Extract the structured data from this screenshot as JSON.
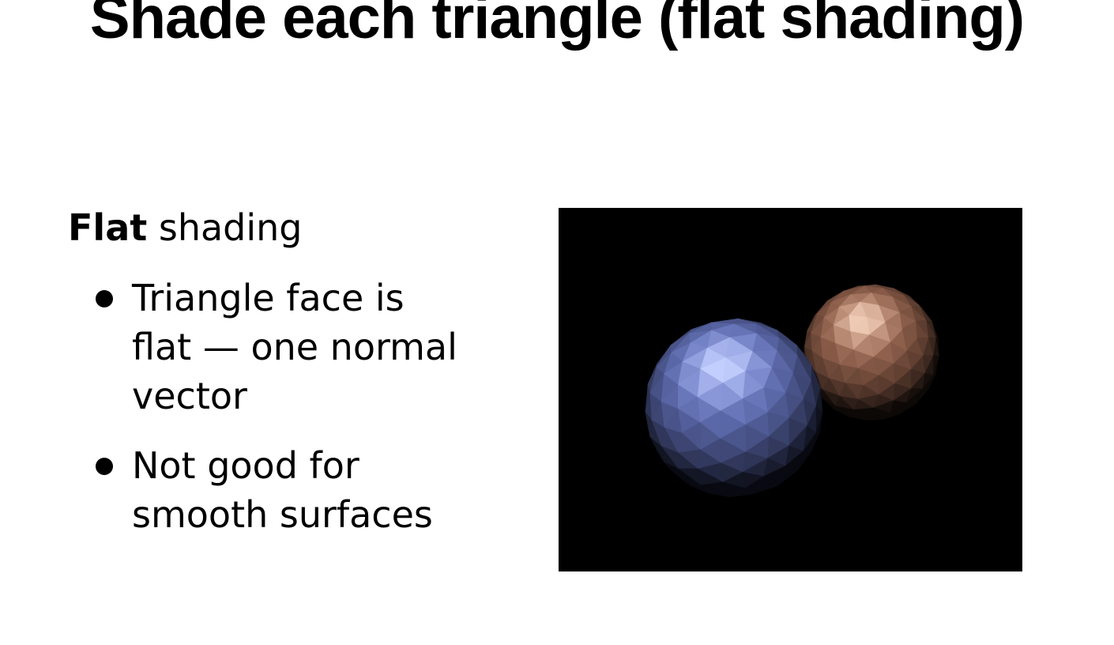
{
  "slide": {
    "title": "Shade each triangle (flat shading)",
    "heading_bold": "Flat",
    "heading_rest": " shading",
    "bullets": [
      {
        "lines": [
          "Triangle face is",
          "flat — one normal",
          "vector"
        ]
      },
      {
        "lines": [
          "Not good for",
          "smooth surfaces"
        ]
      }
    ]
  },
  "figure": {
    "background": "#000000",
    "spheres": [
      {
        "name": "blue-sphere",
        "color": "#6f7fd0",
        "highlight": "#c6d2ff"
      },
      {
        "name": "copper-sphere",
        "color": "#a66e56",
        "highlight": "#f4d2bd"
      }
    ]
  }
}
